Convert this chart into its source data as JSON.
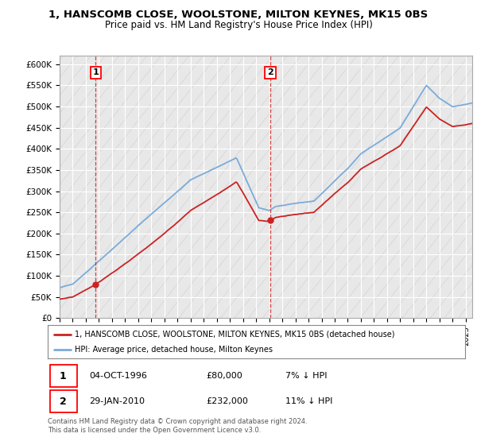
{
  "title_line1": "1, HANSCOMB CLOSE, WOOLSTONE, MILTON KEYNES, MK15 0BS",
  "title_line2": "Price paid vs. HM Land Registry's House Price Index (HPI)",
  "ylim": [
    0,
    620000
  ],
  "yticks": [
    0,
    50000,
    100000,
    150000,
    200000,
    250000,
    300000,
    350000,
    400000,
    450000,
    500000,
    550000,
    600000
  ],
  "ytick_labels": [
    "£0",
    "£50K",
    "£100K",
    "£150K",
    "£200K",
    "£250K",
    "£300K",
    "£350K",
    "£400K",
    "£450K",
    "£500K",
    "£550K",
    "£600K"
  ],
  "hpi_color": "#7aabdb",
  "price_color": "#cc2222",
  "sale1_date": 1996.75,
  "sale1_price": 80000,
  "sale2_date": 2010.08,
  "sale2_price": 232000,
  "legend_label1": "1, HANSCOMB CLOSE, WOOLSTONE, MILTON KEYNES, MK15 0BS (detached house)",
  "legend_label2": "HPI: Average price, detached house, Milton Keynes",
  "footnote": "Contains HM Land Registry data © Crown copyright and database right 2024.\nThis data is licensed under the Open Government Licence v3.0.",
  "bg_color": "#ffffff",
  "plot_bg_color": "#e8e8e8",
  "grid_color": "#ffffff"
}
